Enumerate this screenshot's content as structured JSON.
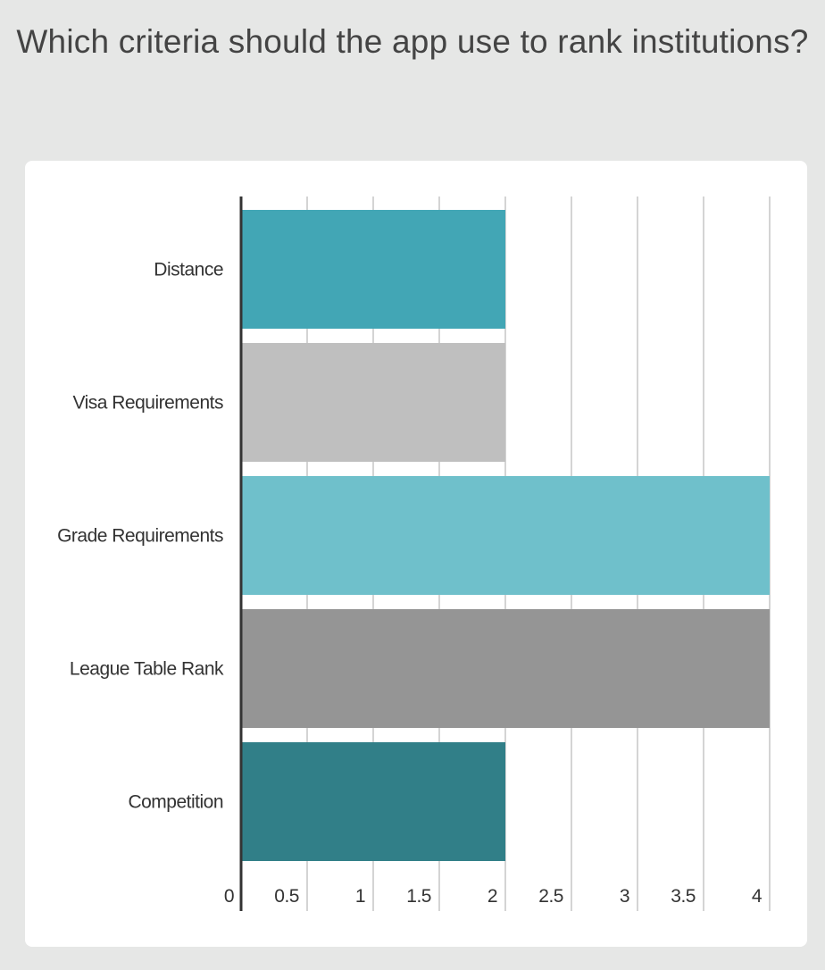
{
  "title": "Which criteria should the app use to rank institutions?",
  "chart_data": {
    "type": "bar",
    "orientation": "horizontal",
    "title": "Which criteria should the app use to rank institutions?",
    "categories": [
      "Distance",
      "Visa Requirements",
      "Grade Requirements",
      "League Table Rank",
      "Competition"
    ],
    "values": [
      2,
      2,
      4,
      4,
      2
    ],
    "colors": [
      "#42a6b5",
      "#bfbfbf",
      "#6fc0cb",
      "#959595",
      "#317f88"
    ],
    "xlim": [
      0,
      4
    ],
    "ticks": [
      0,
      0.5,
      1,
      1.5,
      2,
      2.5,
      3,
      3.5,
      4
    ],
    "tick_labels": [
      "0",
      "0.5",
      "1",
      "1.5",
      "2",
      "2.5",
      "3",
      "3.5",
      "4"
    ],
    "grid": true,
    "legend": "none"
  }
}
